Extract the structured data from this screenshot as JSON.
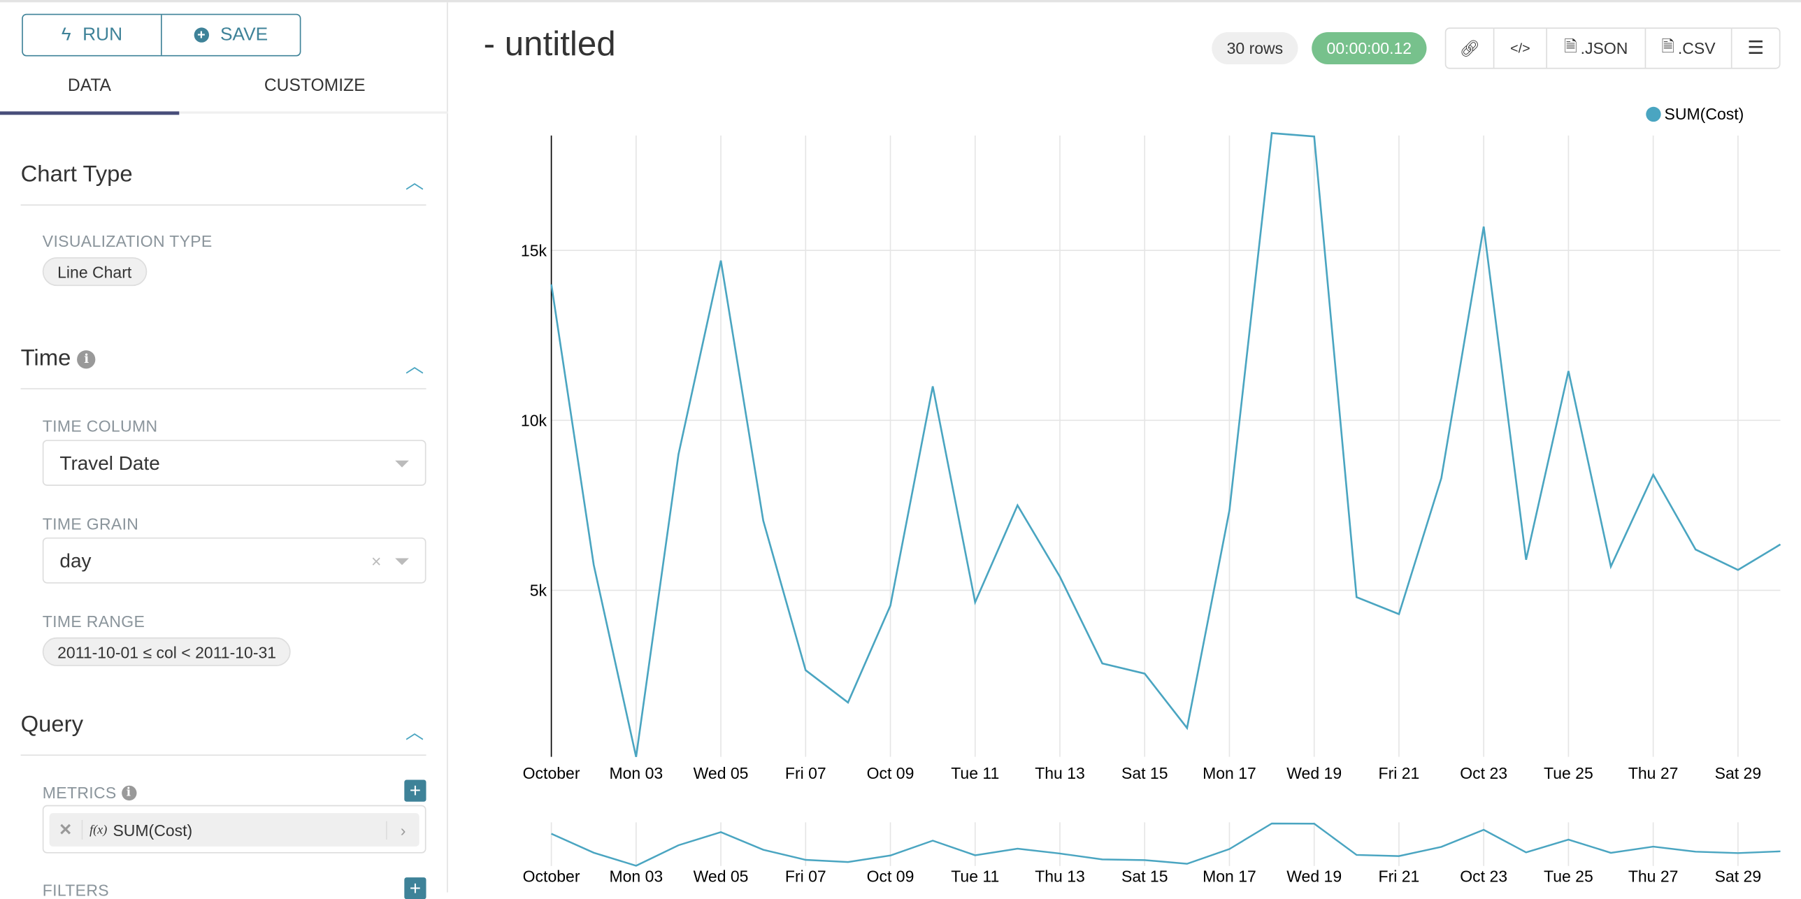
{
  "sidebar": {
    "run_label": "RUN",
    "save_label": "SAVE",
    "tabs": [
      {
        "label": "DATA",
        "active": true
      },
      {
        "label": "CUSTOMIZE",
        "active": false
      }
    ],
    "chart_type": {
      "title": "Chart Type",
      "viz_label": "VISUALIZATION TYPE",
      "viz_value": "Line Chart"
    },
    "time": {
      "title": "Time",
      "time_column_label": "TIME COLUMN",
      "time_column_value": "Travel Date",
      "time_grain_label": "TIME GRAIN",
      "time_grain_value": "day",
      "time_range_label": "TIME RANGE",
      "time_range_value": "2011-10-01 ≤ col < 2011-10-31"
    },
    "query": {
      "title": "Query",
      "metrics_label": "METRICS",
      "metric_value": "SUM(Cost)",
      "metric_fx": "f(x)",
      "filters_label": "FILTERS"
    }
  },
  "header": {
    "title": "- untitled",
    "rows_badge": "30 rows",
    "timer_badge": "00:00:00.12",
    "json_label": ".JSON",
    "csv_label": ".CSV"
  },
  "colors": {
    "accent": "#3e8298",
    "series": "#4aa5c1",
    "timer": "#77c18c"
  },
  "chart_data": {
    "type": "line",
    "legend": "top-right",
    "series": [
      {
        "name": "SUM(Cost)",
        "values": [
          14000,
          5750,
          100,
          9000,
          14700,
          7050,
          2650,
          1700,
          4550,
          11000,
          4650,
          7500,
          5400,
          2850,
          2550,
          950,
          7350,
          18450,
          18350,
          4800,
          4300,
          8300,
          15700,
          5900,
          11450,
          5700,
          8400,
          6200,
          5600,
          6350
        ]
      }
    ],
    "x": [
      "2011-10-01",
      "2011-10-02",
      "2011-10-03",
      "2011-10-04",
      "2011-10-05",
      "2011-10-06",
      "2011-10-07",
      "2011-10-08",
      "2011-10-09",
      "2011-10-10",
      "2011-10-11",
      "2011-10-12",
      "2011-10-13",
      "2011-10-14",
      "2011-10-15",
      "2011-10-16",
      "2011-10-17",
      "2011-10-18",
      "2011-10-19",
      "2011-10-20",
      "2011-10-21",
      "2011-10-22",
      "2011-10-23",
      "2011-10-24",
      "2011-10-25",
      "2011-10-26",
      "2011-10-27",
      "2011-10-28",
      "2011-10-29",
      "2011-10-30"
    ],
    "x_tick_labels": [
      "October",
      "Mon 03",
      "Wed 05",
      "Fri 07",
      "Oct 09",
      "Tue 11",
      "Thu 13",
      "Sat 15",
      "Mon 17",
      "Wed 19",
      "Fri 21",
      "Oct 23",
      "Tue 25",
      "Thu 27",
      "Sat 29"
    ],
    "y_ticks": [
      5000,
      10000,
      15000
    ],
    "y_tick_labels": [
      "5k",
      "10k",
      "15k"
    ],
    "ylim": [
      0,
      18450
    ],
    "grid": true,
    "has_range_selector": true
  }
}
